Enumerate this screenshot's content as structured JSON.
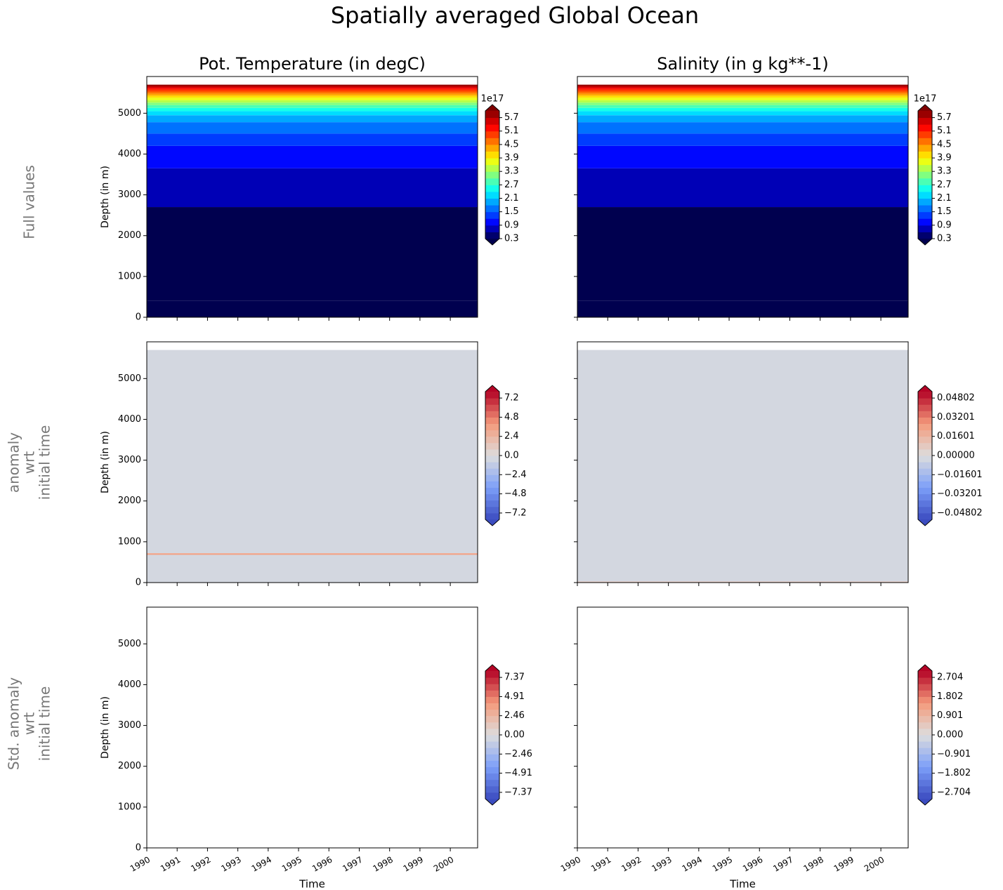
{
  "title": "Spatially averaged Global Ocean",
  "row_labels": [
    [
      "Full values"
    ],
    [
      "anomaly",
      "wrt",
      "initial time"
    ],
    [
      "Std. anomaly",
      "wrt",
      "initial time"
    ]
  ],
  "chart_data": [
    {
      "type": "contour",
      "title": "Pot. Temperature (in degC)",
      "ylabel": "Depth (in m)",
      "ytick_labels": true,
      "xtick_labels": false,
      "xlim": [
        1990,
        2000.9
      ],
      "xticks": [
        1990,
        1991,
        1992,
        1993,
        1994,
        1995,
        1996,
        1997,
        1998,
        1999,
        2000
      ],
      "ylim": [
        5900,
        0
      ],
      "yticks": [
        0,
        1000,
        2000,
        3000,
        4000,
        5000
      ],
      "y_edges": [
        0,
        400,
        2700,
        3650,
        4200,
        4500,
        4780,
        4950,
        5050,
        5130,
        5200,
        5260,
        5320,
        5380,
        5430,
        5480,
        5530,
        5580,
        5620,
        5660,
        5700
      ],
      "values": [
        0.05,
        0.2,
        0.7,
        1.0,
        1.3,
        1.6,
        1.9,
        2.2,
        2.5,
        2.8,
        3.1,
        3.4,
        3.7,
        4.0,
        4.3,
        4.6,
        4.9,
        5.2,
        5.5,
        5.8
      ],
      "cmap": "jet",
      "clim": [
        0.3,
        6.0
      ],
      "n_bands": 19,
      "cbar_offset": "1e17",
      "cbar_ticks": [
        0.3,
        0.9,
        1.5,
        2.1,
        2.7,
        3.3,
        3.9,
        4.5,
        5.1,
        5.7
      ]
    },
    {
      "type": "contour",
      "title": "Salinity (in g kg**-1)",
      "ytick_labels": false,
      "xtick_labels": false,
      "xlim": [
        1990,
        2000.9
      ],
      "xticks": [
        1990,
        1991,
        1992,
        1993,
        1994,
        1995,
        1996,
        1997,
        1998,
        1999,
        2000
      ],
      "ylim": [
        5900,
        0
      ],
      "yticks": [
        0,
        1000,
        2000,
        3000,
        4000,
        5000
      ],
      "y_edges": [
        0,
        400,
        2700,
        3650,
        4200,
        4500,
        4780,
        4950,
        5050,
        5130,
        5200,
        5260,
        5320,
        5380,
        5430,
        5480,
        5530,
        5580,
        5620,
        5660,
        5700
      ],
      "values": [
        0.05,
        0.2,
        0.7,
        1.0,
        1.3,
        1.6,
        1.9,
        2.2,
        2.5,
        2.8,
        3.1,
        3.4,
        3.7,
        4.0,
        4.3,
        4.6,
        4.9,
        5.2,
        5.5,
        5.8
      ],
      "cmap": "jet",
      "clim": [
        0.3,
        6.0
      ],
      "n_bands": 19,
      "cbar_offset": "1e17",
      "cbar_ticks": [
        0.3,
        0.9,
        1.5,
        2.1,
        2.7,
        3.3,
        3.9,
        4.5,
        5.1,
        5.7
      ]
    },
    {
      "type": "contour",
      "ylabel": "Depth (in m)",
      "ytick_labels": true,
      "xtick_labels": false,
      "xlim": [
        1990,
        2000.9
      ],
      "xticks": [
        1990,
        1991,
        1992,
        1993,
        1994,
        1995,
        1996,
        1997,
        1998,
        1999,
        2000
      ],
      "ylim": [
        5900,
        0
      ],
      "yticks": [
        0,
        1000,
        2000,
        3000,
        4000,
        5000
      ],
      "y_edges": [
        0,
        680,
        720,
        5700
      ],
      "values": [
        0,
        3.5,
        0
      ],
      "cmap": "coolwarm",
      "clim": [
        -8,
        8
      ],
      "n_bands": 20,
      "cbar_ticks": [
        {
          "value": -7.2,
          "label": "−7.2"
        },
        {
          "value": -4.8,
          "label": "−4.8"
        },
        {
          "value": -2.4,
          "label": "−2.4"
        },
        {
          "value": 0,
          "label": "0.0"
        },
        2.4,
        4.8,
        7.2
      ]
    },
    {
      "type": "contour",
      "ytick_labels": false,
      "xtick_labels": false,
      "xlim": [
        1990,
        2000.9
      ],
      "xticks": [
        1990,
        1991,
        1992,
        1993,
        1994,
        1995,
        1996,
        1997,
        1998,
        1999,
        2000
      ],
      "ylim": [
        5900,
        0
      ],
      "yticks": [
        0,
        1000,
        2000,
        3000,
        4000,
        5000
      ],
      "y_edges": [
        0,
        30,
        5700
      ],
      "values": [
        0.01,
        0
      ],
      "cmap": "coolwarm",
      "clim": [
        -0.05336,
        0.05336
      ],
      "n_bands": 20,
      "cbar_ticks": [
        {
          "value": -0.04802,
          "label": "−0.04802"
        },
        {
          "value": -0.03201,
          "label": "−0.03201"
        },
        {
          "value": -0.01601,
          "label": "−0.01601"
        },
        {
          "value": 0,
          "label": "0.00000"
        },
        0.01601,
        0.03201,
        0.04802
      ]
    },
    {
      "type": "contour",
      "ylabel": "Depth (in m)",
      "xlabel": "Time",
      "ytick_labels": true,
      "xtick_labels": true,
      "xlim": [
        1990,
        2000.9
      ],
      "xticks": [
        1990,
        1991,
        1992,
        1993,
        1994,
        1995,
        1996,
        1997,
        1998,
        1999,
        2000
      ],
      "ylim": [
        5900,
        0
      ],
      "yticks": [
        0,
        1000,
        2000,
        3000,
        4000,
        5000
      ],
      "y_edges": [
        0,
        5700
      ],
      "values": [
        null
      ],
      "cmap": "coolwarm",
      "clim": [
        -8.19,
        8.19
      ],
      "n_bands": 20,
      "cbar_ticks": [
        {
          "value": -7.37,
          "label": "−7.37"
        },
        {
          "value": -4.91,
          "label": "−4.91"
        },
        {
          "value": -2.46,
          "label": "−2.46"
        },
        {
          "value": 0,
          "label": "0.00"
        },
        2.46,
        4.91,
        7.37
      ]
    },
    {
      "type": "contour",
      "xlabel": "Time",
      "ytick_labels": false,
      "xtick_labels": true,
      "xlim": [
        1990,
        2000.9
      ],
      "xticks": [
        1990,
        1991,
        1992,
        1993,
        1994,
        1995,
        1996,
        1997,
        1998,
        1999,
        2000
      ],
      "ylim": [
        5900,
        0
      ],
      "yticks": [
        0,
        1000,
        2000,
        3000,
        4000,
        5000
      ],
      "y_edges": [
        0,
        5700
      ],
      "values": [
        null
      ],
      "cmap": "coolwarm",
      "clim": [
        -3.004,
        3.004
      ],
      "n_bands": 20,
      "cbar_ticks": [
        {
          "value": -2.704,
          "label": "−2.704"
        },
        {
          "value": -1.802,
          "label": "−1.802"
        },
        {
          "value": -0.901,
          "label": "−0.901"
        },
        {
          "value": 0,
          "label": "0.000"
        },
        0.901,
        1.802,
        2.704
      ]
    }
  ]
}
